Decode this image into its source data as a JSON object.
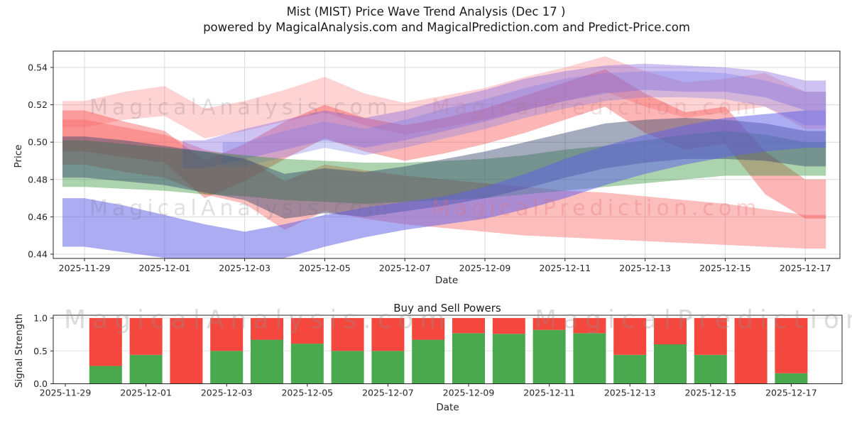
{
  "header": {
    "title": "Mist (MIST) Price Wave Trend Analysis (Dec 17 )",
    "subtitle": "powered by MagicalAnalysis.com and MagicalPrediction.com and Predict-Price.com"
  },
  "watermarks": {
    "analysis": "MagicalAnalysis.com",
    "prediction": "MagicalPrediction.com"
  },
  "chart_data": [
    {
      "type": "area",
      "ylabel": "Price",
      "xlabel": "Date",
      "ylim": [
        0.4377,
        0.5487
      ],
      "ytick_labels": [
        "0.44",
        "0.46",
        "0.48",
        "0.50",
        "0.52",
        "0.54"
      ],
      "grid": true,
      "dates": [
        "2025-11-29",
        "2025-11-30",
        "2025-12-01",
        "2025-12-02",
        "2025-12-03",
        "2025-12-04",
        "2025-12-05",
        "2025-12-06",
        "2025-12-07",
        "2025-12-08",
        "2025-12-09",
        "2025-12-10",
        "2025-12-11",
        "2025-12-12",
        "2025-12-13",
        "2025-12-14",
        "2025-12-15",
        "2025-12-16",
        "2025-12-17"
      ],
      "bands": [
        {
          "name": "pink-pale-wave",
          "color": "#fc7878",
          "opacity": 0.33,
          "start": 0,
          "lower": [
            0.508,
            0.512,
            0.514,
            0.502,
            0.506,
            0.511,
            0.516,
            0.509,
            0.504,
            0.508,
            0.512,
            0.517,
            0.522,
            0.527,
            0.519,
            0.513,
            0.516,
            0.519,
            0.507
          ],
          "upper": [
            0.522,
            0.527,
            0.53,
            0.518,
            0.522,
            0.528,
            0.535,
            0.526,
            0.521,
            0.525,
            0.529,
            0.535,
            0.54,
            0.546,
            0.538,
            0.532,
            0.534,
            0.537,
            0.527
          ]
        },
        {
          "name": "red-main-wave",
          "color": "#f84848",
          "opacity": 0.4,
          "start": 0,
          "lower": [
            0.495,
            0.492,
            0.489,
            0.47,
            0.479,
            0.491,
            0.502,
            0.495,
            0.49,
            0.494,
            0.499,
            0.505,
            0.512,
            0.519,
            0.505,
            0.496,
            0.499,
            0.472,
            0.459
          ],
          "upper": [
            0.517,
            0.511,
            0.506,
            0.49,
            0.499,
            0.511,
            0.52,
            0.513,
            0.509,
            0.513,
            0.518,
            0.525,
            0.532,
            0.539,
            0.526,
            0.516,
            0.519,
            0.495,
            0.48
          ]
        },
        {
          "name": "red-descending-band",
          "color": "#f86262",
          "opacity": 0.42,
          "start": 0,
          "lower": [
            0.488,
            0.484,
            0.481,
            0.472,
            0.467,
            0.453,
            0.463,
            0.459,
            0.456,
            0.454,
            0.452,
            0.45,
            0.449,
            0.448,
            0.447,
            0.446,
            0.445,
            0.444,
            0.443
          ],
          "upper": [
            0.512,
            0.508,
            0.504,
            0.496,
            0.492,
            0.479,
            0.488,
            0.485,
            0.482,
            0.48,
            0.478,
            0.476,
            0.474,
            0.473,
            0.471,
            0.469,
            0.467,
            0.464,
            0.461
          ]
        },
        {
          "name": "violet-top-band",
          "color": "#7e5ee0",
          "opacity": 0.38,
          "start": 3,
          "lower": [
            0.486,
            0.491,
            0.496,
            0.501,
            0.497,
            0.501,
            0.506,
            0.511,
            0.517,
            0.522,
            0.526,
            0.528,
            0.527,
            0.527,
            0.524,
            0.517
          ],
          "upper": [
            0.501,
            0.507,
            0.512,
            0.517,
            0.513,
            0.517,
            0.523,
            0.528,
            0.534,
            0.538,
            0.541,
            0.542,
            0.541,
            0.54,
            0.538,
            0.533
          ]
        },
        {
          "name": "blue-upper-band",
          "color": "#7878e8",
          "opacity": 0.33,
          "start": 4,
          "lower": [
            0.487,
            0.492,
            0.497,
            0.493,
            0.497,
            0.502,
            0.507,
            0.513,
            0.518,
            0.522,
            0.524,
            0.524,
            0.523,
            0.519,
            0.509
          ],
          "upper": [
            0.5,
            0.506,
            0.511,
            0.507,
            0.512,
            0.518,
            0.523,
            0.529,
            0.534,
            0.537,
            0.538,
            0.538,
            0.537,
            0.533,
            0.527
          ]
        },
        {
          "name": "green-band",
          "color": "#2d9132",
          "opacity": 0.4,
          "start": 0,
          "lower": [
            0.476,
            0.475,
            0.474,
            0.472,
            0.471,
            0.469,
            0.468,
            0.467,
            0.468,
            0.469,
            0.47,
            0.472,
            0.474,
            0.476,
            0.478,
            0.48,
            0.482,
            0.482,
            0.482
          ],
          "upper": [
            0.501,
            0.499,
            0.497,
            0.495,
            0.493,
            0.491,
            0.49,
            0.489,
            0.489,
            0.49,
            0.491,
            0.493,
            0.496,
            0.498,
            0.501,
            0.504,
            0.506,
            0.504,
            0.5
          ]
        },
        {
          "name": "slate-band",
          "color": "#36496e",
          "opacity": 0.46,
          "start": 0,
          "lower": [
            0.481,
            0.479,
            0.477,
            0.473,
            0.469,
            0.459,
            0.462,
            0.46,
            0.463,
            0.466,
            0.47,
            0.475,
            0.481,
            0.486,
            0.489,
            0.491,
            0.491,
            0.49,
            0.487
          ],
          "upper": [
            0.503,
            0.501,
            0.498,
            0.495,
            0.491,
            0.483,
            0.486,
            0.484,
            0.487,
            0.491,
            0.495,
            0.5,
            0.505,
            0.51,
            0.512,
            0.513,
            0.512,
            0.51,
            0.506
          ]
        },
        {
          "name": "periwinkle-bottom-band",
          "color": "#6060e8",
          "opacity": 0.52,
          "start": 0,
          "lower": [
            0.444,
            0.441,
            0.438,
            0.436,
            0.4355,
            0.438,
            0.444,
            0.449,
            0.453,
            0.456,
            0.459,
            0.464,
            0.47,
            0.477,
            0.483,
            0.488,
            0.492,
            0.495,
            0.497
          ],
          "upper": [
            0.47,
            0.466,
            0.461,
            0.456,
            0.452,
            0.456,
            0.461,
            0.465,
            0.468,
            0.471,
            0.476,
            0.483,
            0.491,
            0.498,
            0.504,
            0.509,
            0.513,
            0.515,
            0.517
          ]
        }
      ]
    },
    {
      "type": "bar",
      "title": "Buy and Sell Powers",
      "ylabel": "Signal Strength",
      "xlabel": "Date",
      "ylim": [
        0,
        1.04
      ],
      "ytick_labels": [
        "0.0",
        "0.5",
        "1.0"
      ],
      "dates": [
        "2025-11-29",
        "2025-11-30",
        "2025-12-01",
        "2025-12-02",
        "2025-12-03",
        "2025-12-04",
        "2025-12-05",
        "2025-12-06",
        "2025-12-07",
        "2025-12-08",
        "2025-12-09",
        "2025-12-10",
        "2025-12-11",
        "2025-12-12",
        "2025-12-13",
        "2025-12-14",
        "2025-12-15",
        "2025-12-16",
        "2025-12-17"
      ],
      "categories": [
        "2025-11-30",
        "2025-12-01",
        "2025-12-02",
        "2025-12-03",
        "2025-12-04",
        "2025-12-05",
        "2025-12-06",
        "2025-12-07",
        "2025-12-08",
        "2025-12-09",
        "2025-12-10",
        "2025-12-11",
        "2025-12-12",
        "2025-12-13",
        "2025-12-14",
        "2025-12-15",
        "2025-12-16",
        "2025-12-17"
      ],
      "series": [
        {
          "name": "buy-power",
          "color": "#4aa84e",
          "values": [
            0.27,
            0.44,
            0.0,
            0.5,
            0.67,
            0.61,
            0.5,
            0.5,
            0.67,
            0.77,
            0.76,
            0.82,
            0.77,
            0.44,
            0.6,
            0.44,
            0.0,
            0.16
          ]
        },
        {
          "name": "sell-power",
          "color": "#f4483f",
          "values": [
            0.73,
            0.56,
            1.0,
            0.5,
            0.33,
            0.39,
            0.5,
            0.5,
            0.33,
            0.23,
            0.24,
            0.18,
            0.23,
            0.56,
            0.4,
            0.56,
            1.0,
            0.84
          ]
        }
      ]
    }
  ]
}
